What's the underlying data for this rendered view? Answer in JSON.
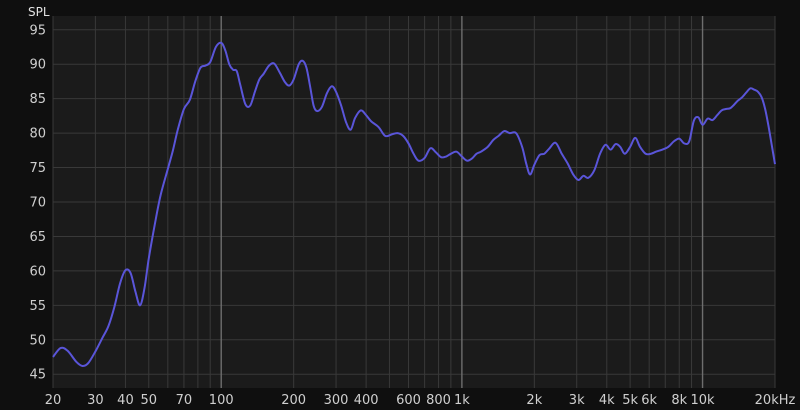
{
  "chart_data": {
    "type": "line",
    "ylabel": "SPL",
    "xscale": "log",
    "xlim": [
      20,
      20000
    ],
    "ylim": [
      43,
      97
    ],
    "grid": true,
    "background": "#1b1b1b",
    "line_color": "#5a55d9",
    "x_ticks": [
      {
        "value": 20,
        "label": "20"
      },
      {
        "value": 30,
        "label": "30"
      },
      {
        "value": 40,
        "label": "40"
      },
      {
        "value": 50,
        "label": "50"
      },
      {
        "value": 70,
        "label": "70"
      },
      {
        "value": 100,
        "label": "100"
      },
      {
        "value": 200,
        "label": "200"
      },
      {
        "value": 300,
        "label": "300"
      },
      {
        "value": 400,
        "label": "400"
      },
      {
        "value": 600,
        "label": "600"
      },
      {
        "value": 800,
        "label": "800"
      },
      {
        "value": 1000,
        "label": "1k"
      },
      {
        "value": 2000,
        "label": "2k"
      },
      {
        "value": 3000,
        "label": "3k"
      },
      {
        "value": 4000,
        "label": "4k"
      },
      {
        "value": 5000,
        "label": "5k"
      },
      {
        "value": 6000,
        "label": "6k"
      },
      {
        "value": 8000,
        "label": "8k"
      },
      {
        "value": 10000,
        "label": "10k"
      },
      {
        "value": 20000,
        "label": "20kHz"
      }
    ],
    "y_ticks": [
      45,
      50,
      55,
      60,
      65,
      70,
      75,
      80,
      85,
      90,
      95
    ],
    "series": [
      {
        "x": [
          20,
          21.5,
          23,
          25,
          26.5,
          28,
          30,
          32,
          34,
          36,
          38,
          40,
          42,
          44,
          46,
          48,
          50,
          53,
          56,
          60,
          63,
          66,
          70,
          74,
          78,
          82,
          86,
          90,
          95,
          100,
          104,
          108,
          112,
          116,
          120,
          126,
          132,
          138,
          144,
          150,
          158,
          166,
          175,
          184,
          192,
          200,
          210,
          218,
          226,
          234,
          242,
          250,
          262,
          275,
          288,
          300,
          315,
          330,
          345,
          360,
          380,
          400,
          420,
          450,
          480,
          510,
          540,
          570,
          600,
          630,
          660,
          700,
          740,
          780,
          820,
          860,
          900,
          950,
          1000,
          1050,
          1100,
          1150,
          1200,
          1280,
          1350,
          1420,
          1500,
          1580,
          1680,
          1780,
          1850,
          1920,
          2000,
          2100,
          2200,
          2300,
          2450,
          2600,
          2750,
          2900,
          3050,
          3200,
          3350,
          3550,
          3750,
          3950,
          4150,
          4350,
          4550,
          4750,
          5000,
          5250,
          5500,
          5800,
          6100,
          6400,
          6800,
          7200,
          7600,
          8000,
          8400,
          8800,
          9200,
          9600,
          10000,
          10500,
          11000,
          11500,
          12000,
          12500,
          13000,
          13500,
          14000,
          14600,
          15200,
          15800,
          16400,
          17000,
          17600,
          18200,
          18800,
          19400,
          20000
        ],
        "y": [
          47.5,
          48.8,
          48.4,
          46.8,
          46.2,
          46.6,
          48.3,
          50.2,
          52.0,
          54.8,
          58.2,
          60.1,
          59.7,
          57.0,
          55.0,
          57.5,
          61.8,
          66.8,
          71.0,
          74.8,
          77.5,
          80.5,
          83.5,
          84.8,
          87.5,
          89.5,
          89.8,
          90.3,
          92.5,
          93.1,
          92.0,
          90.0,
          89.2,
          89.0,
          87.0,
          84.2,
          84.0,
          86.0,
          87.8,
          88.6,
          89.8,
          90.1,
          88.8,
          87.4,
          86.9,
          87.8,
          90.0,
          90.5,
          89.5,
          86.8,
          84.0,
          83.2,
          83.8,
          85.8,
          86.8,
          86.0,
          84.0,
          81.6,
          80.5,
          82.2,
          83.3,
          82.6,
          81.7,
          80.9,
          79.6,
          79.8,
          80.0,
          79.6,
          78.5,
          77.0,
          76.0,
          76.4,
          77.8,
          77.2,
          76.5,
          76.6,
          77.0,
          77.3,
          76.6,
          76.0,
          76.3,
          77.0,
          77.3,
          78.0,
          79.0,
          79.6,
          80.3,
          80.0,
          80.0,
          78.0,
          75.6,
          74.0,
          75.4,
          76.8,
          77.0,
          77.7,
          78.6,
          77.0,
          75.6,
          74.0,
          73.2,
          73.8,
          73.5,
          74.6,
          77.0,
          78.3,
          77.6,
          78.4,
          78.0,
          77.0,
          78.0,
          79.3,
          78.0,
          77.0,
          77.0,
          77.3,
          77.6,
          78.0,
          78.8,
          79.2,
          78.5,
          78.8,
          81.8,
          82.3,
          81.2,
          82.1,
          81.9,
          82.6,
          83.3,
          83.5,
          83.6,
          84.1,
          84.7,
          85.2,
          85.9,
          86.5,
          86.3,
          86.0,
          85.2,
          83.5,
          81.0,
          78.2,
          75.5
        ]
      }
    ]
  }
}
